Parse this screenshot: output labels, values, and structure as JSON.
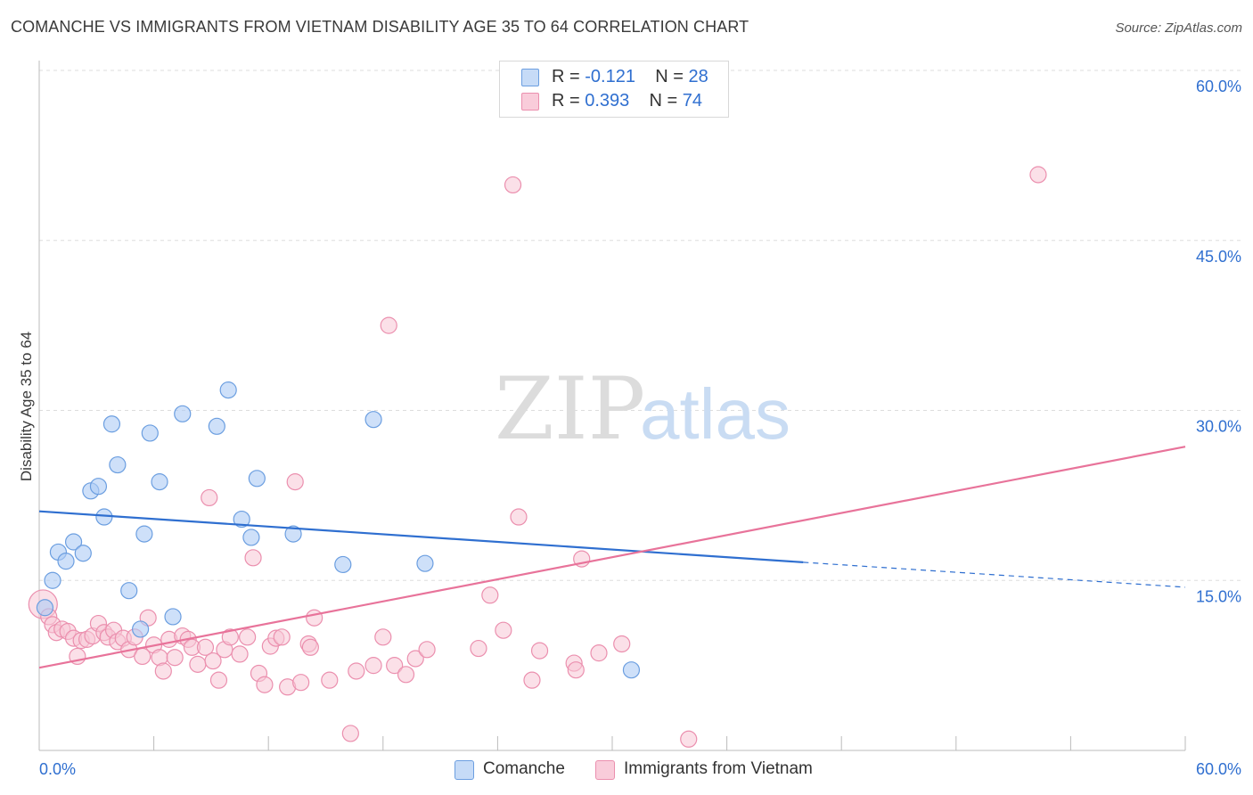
{
  "header": {
    "title": "COMANCHE VS IMMIGRANTS FROM VIETNAM DISABILITY AGE 35 TO 64 CORRELATION CHART",
    "source": "Source: ZipAtlas.com"
  },
  "watermark": {
    "zip": "ZIP",
    "atlas": "atlas"
  },
  "legend_top": [
    {
      "r_label": "R =",
      "r_value": "-0.121",
      "n_label": "N =",
      "n_value": "28",
      "color": "#aecbf5"
    },
    {
      "r_label": "R =",
      "r_value": "0.393",
      "n_label": "N =",
      "n_value": "74",
      "color": "#f7b8cb"
    }
  ],
  "legend_bottom": [
    {
      "label": "Comanche",
      "color": "#aecbf5"
    },
    {
      "label": "Immigrants from Vietnam",
      "color": "#f7b8cb"
    }
  ],
  "colors": {
    "blue_line": "#2f6fd0",
    "pink_line": "#e8739a",
    "blue_fill": "#aecbf5",
    "blue_stroke": "#6b9ee0",
    "pink_fill": "#f7c6d5",
    "pink_stroke": "#eb8fae",
    "tick_label": "#2f6fd0",
    "grid": "#dddddd"
  },
  "chart_data": {
    "type": "scatter",
    "title": "COMANCHE VS IMMIGRANTS FROM VIETNAM DISABILITY AGE 35 TO 64 CORRELATION CHART",
    "xlabel": "",
    "ylabel": "Disability Age 35 to 64",
    "xlim": [
      0,
      60
    ],
    "ylim": [
      0,
      60
    ],
    "x_tick_labels": [
      "0.0%",
      "60.0%"
    ],
    "y_ticks": [
      15,
      30,
      45,
      60
    ],
    "y_tick_labels": [
      "15.0%",
      "30.0%",
      "45.0%",
      "60.0%"
    ],
    "grid": true,
    "legend_position": "top-center",
    "series": [
      {
        "name": "Comanche",
        "r": -0.121,
        "n": 28,
        "trend": {
          "x": [
            0,
            40
          ],
          "y": [
            21.1,
            16.6
          ],
          "dashed_to": [
            60,
            14.4
          ]
        },
        "points": [
          [
            0.3,
            12.6
          ],
          [
            0.7,
            15.0
          ],
          [
            1.0,
            17.5
          ],
          [
            1.4,
            16.7
          ],
          [
            1.8,
            18.4
          ],
          [
            2.3,
            17.4
          ],
          [
            2.7,
            22.9
          ],
          [
            3.1,
            23.3
          ],
          [
            3.4,
            20.6
          ],
          [
            3.8,
            28.8
          ],
          [
            4.1,
            25.2
          ],
          [
            4.7,
            14.1
          ],
          [
            5.3,
            10.7
          ],
          [
            5.5,
            19.1
          ],
          [
            5.8,
            28.0
          ],
          [
            6.3,
            23.7
          ],
          [
            7.0,
            11.8
          ],
          [
            7.5,
            29.7
          ],
          [
            9.3,
            28.6
          ],
          [
            9.9,
            31.8
          ],
          [
            10.6,
            20.4
          ],
          [
            11.1,
            18.8
          ],
          [
            11.4,
            24.0
          ],
          [
            13.3,
            19.1
          ],
          [
            15.9,
            16.4
          ],
          [
            17.5,
            29.2
          ],
          [
            20.2,
            16.5
          ],
          [
            31.0,
            7.1
          ]
        ]
      },
      {
        "name": "Immigrants from Vietnam",
        "r": 0.393,
        "n": 74,
        "trend": {
          "x": [
            0,
            60
          ],
          "y": [
            7.3,
            26.8
          ]
        },
        "points": [
          [
            0.2,
            12.9
          ],
          [
            0.5,
            11.8
          ],
          [
            0.7,
            11.1
          ],
          [
            0.9,
            10.4
          ],
          [
            1.2,
            10.7
          ],
          [
            1.5,
            10.5
          ],
          [
            1.8,
            9.9
          ],
          [
            2.0,
            8.3
          ],
          [
            2.2,
            9.7
          ],
          [
            2.5,
            9.8
          ],
          [
            2.8,
            10.1
          ],
          [
            3.1,
            11.2
          ],
          [
            3.4,
            10.4
          ],
          [
            3.6,
            10.0
          ],
          [
            3.9,
            10.6
          ],
          [
            4.1,
            9.6
          ],
          [
            4.4,
            9.9
          ],
          [
            4.7,
            8.9
          ],
          [
            5.0,
            10.0
          ],
          [
            5.4,
            8.3
          ],
          [
            5.7,
            11.7
          ],
          [
            6.0,
            9.3
          ],
          [
            6.3,
            8.2
          ],
          [
            6.5,
            7.0
          ],
          [
            6.8,
            9.8
          ],
          [
            7.1,
            8.2
          ],
          [
            7.5,
            10.1
          ],
          [
            7.8,
            9.8
          ],
          [
            8.0,
            9.1
          ],
          [
            8.3,
            7.6
          ],
          [
            8.7,
            9.1
          ],
          [
            8.9,
            22.3
          ],
          [
            9.1,
            7.9
          ],
          [
            9.4,
            6.2
          ],
          [
            9.7,
            8.9
          ],
          [
            10.0,
            10.0
          ],
          [
            10.5,
            8.5
          ],
          [
            10.9,
            10.0
          ],
          [
            11.2,
            17.0
          ],
          [
            11.5,
            6.8
          ],
          [
            11.8,
            5.8
          ],
          [
            12.1,
            9.2
          ],
          [
            12.4,
            9.9
          ],
          [
            12.7,
            10.0
          ],
          [
            13.0,
            5.6
          ],
          [
            13.4,
            23.7
          ],
          [
            13.7,
            6.0
          ],
          [
            14.1,
            9.4
          ],
          [
            14.4,
            11.7
          ],
          [
            14.2,
            9.1
          ],
          [
            15.2,
            6.2
          ],
          [
            16.3,
            1.5
          ],
          [
            16.6,
            7.0
          ],
          [
            17.5,
            7.5
          ],
          [
            18.0,
            10.0
          ],
          [
            18.3,
            37.5
          ],
          [
            18.6,
            7.5
          ],
          [
            19.2,
            6.7
          ],
          [
            19.7,
            8.1
          ],
          [
            20.3,
            8.9
          ],
          [
            23.0,
            9.0
          ],
          [
            23.6,
            13.7
          ],
          [
            24.3,
            10.6
          ],
          [
            24.8,
            49.9
          ],
          [
            25.1,
            20.6
          ],
          [
            25.8,
            6.2
          ],
          [
            26.2,
            8.8
          ],
          [
            28.0,
            7.7
          ],
          [
            28.1,
            7.1
          ],
          [
            28.4,
            16.9
          ],
          [
            29.3,
            8.6
          ],
          [
            30.5,
            9.4
          ],
          [
            52.3,
            50.8
          ],
          [
            34.0,
            1.0
          ]
        ]
      }
    ]
  }
}
